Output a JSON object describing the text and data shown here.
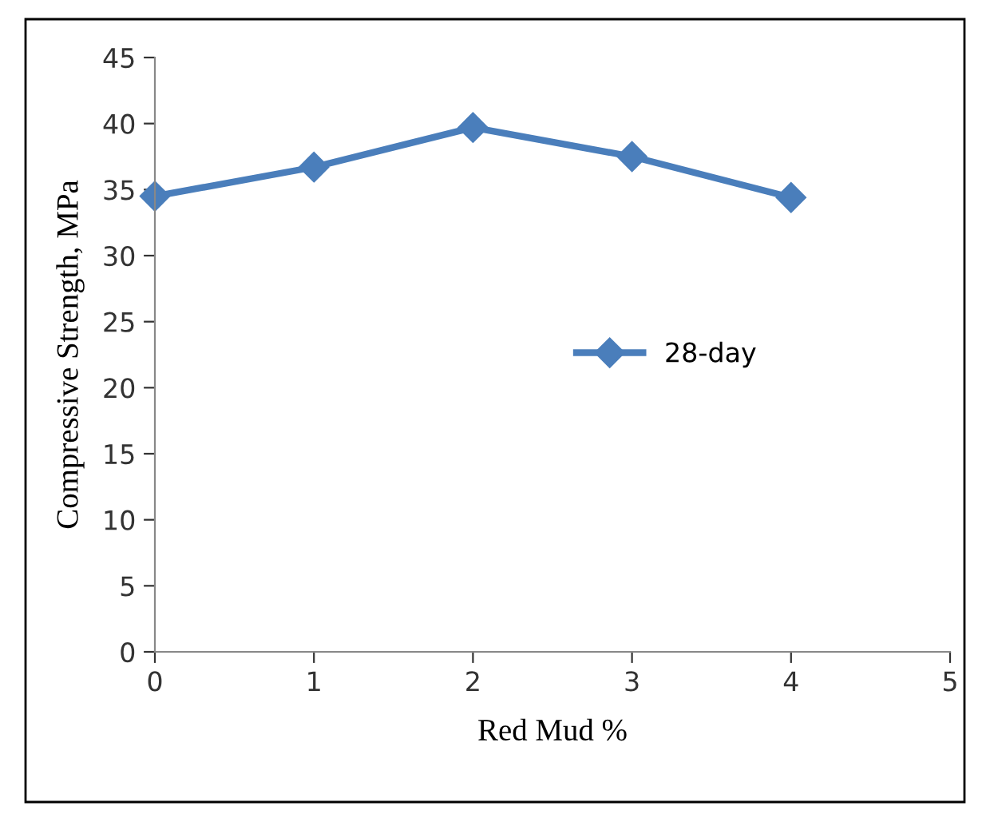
{
  "chart_data": {
    "type": "line",
    "xlabel": "Red Mud %",
    "ylabel": "Compressive Strength, MPa",
    "x": [
      0,
      1,
      2,
      3,
      4
    ],
    "series": [
      {
        "name": "28-day",
        "color": "#4a7ebb",
        "values": [
          34.5,
          36.7,
          39.7,
          37.5,
          34.4
        ]
      }
    ],
    "xlim": [
      0,
      5
    ],
    "xticks": [
      0,
      1,
      2,
      3,
      4,
      5
    ],
    "ylim": [
      0,
      45
    ],
    "yticks": [
      0,
      5,
      10,
      15,
      20,
      25,
      30,
      35,
      40,
      45
    ],
    "grid": false,
    "legend": "right",
    "marker": "diamond",
    "line_style": "solid"
  }
}
